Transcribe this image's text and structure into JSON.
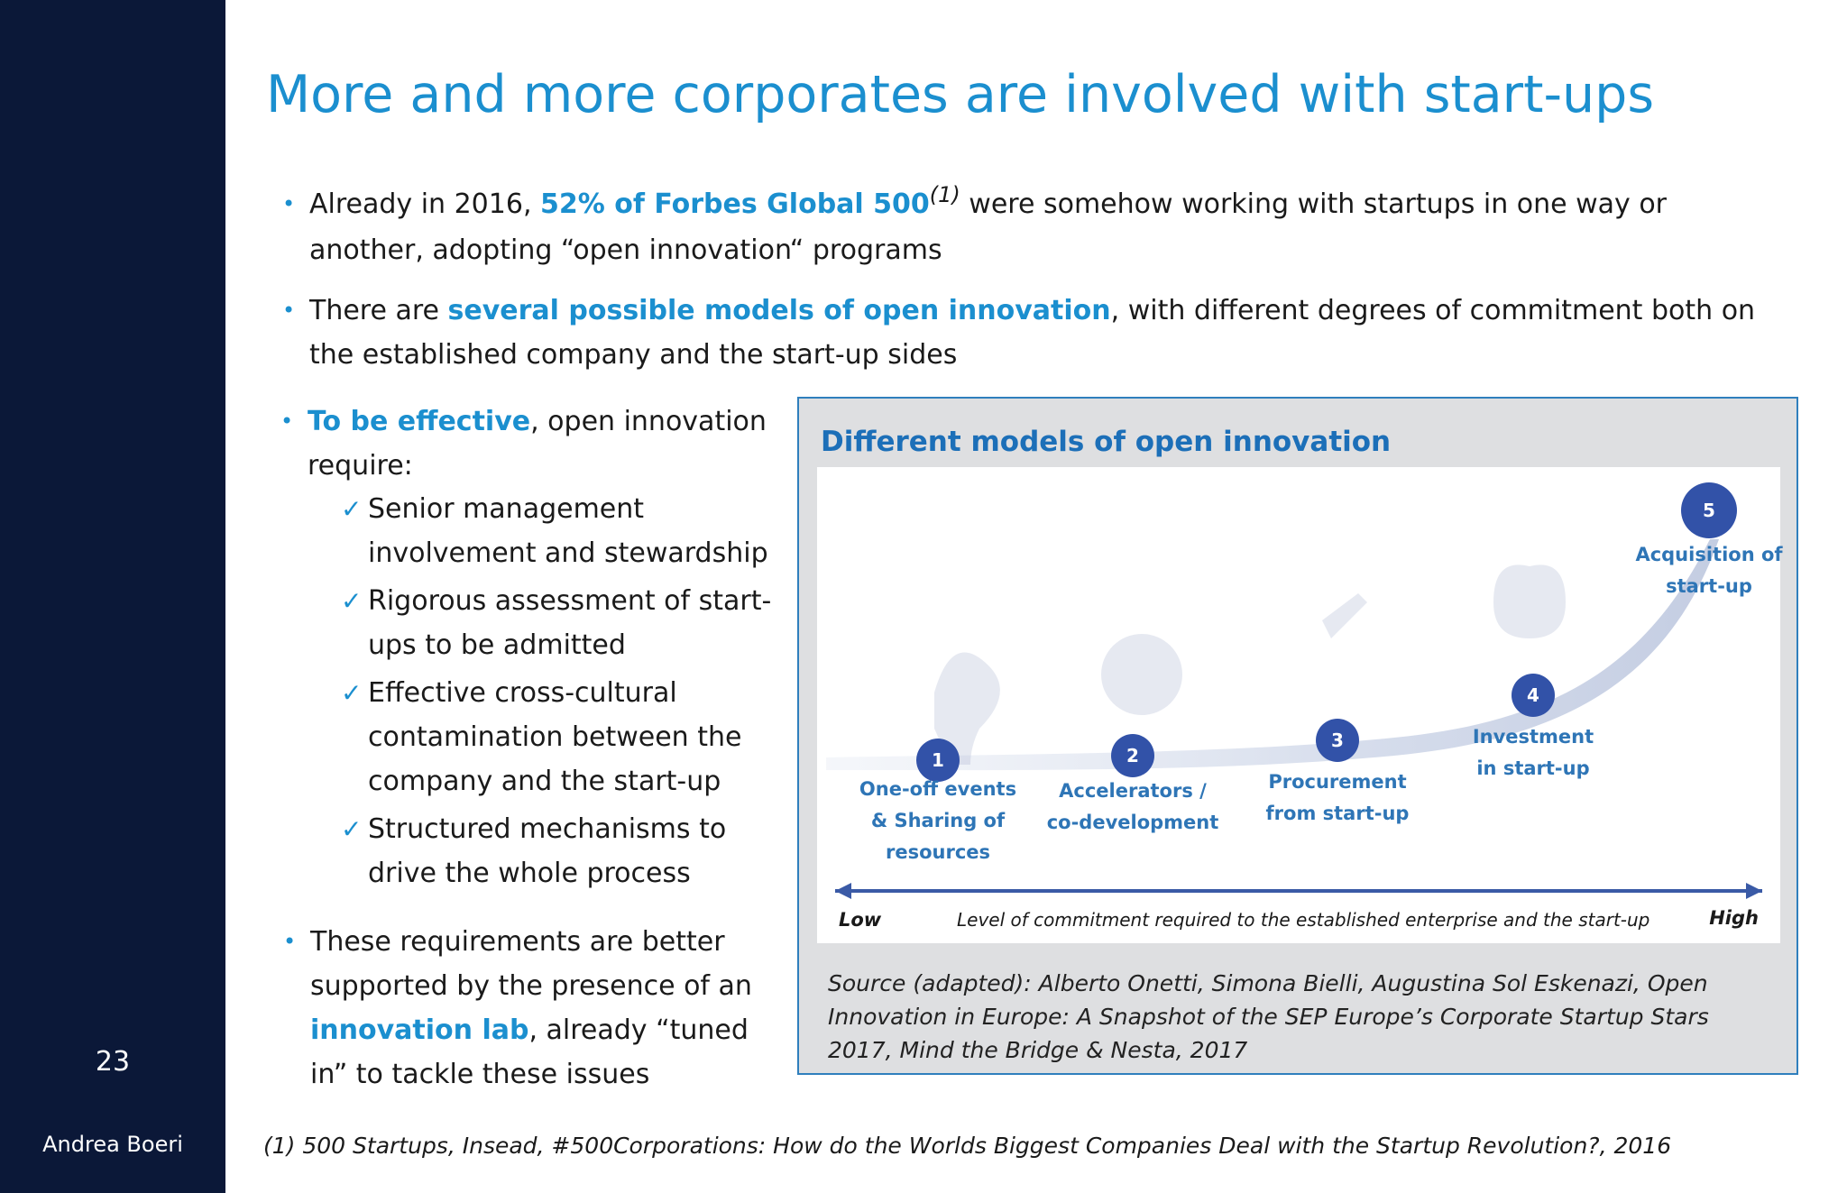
{
  "slide": {
    "title": "More and more corporates are involved with start-ups",
    "number": "23",
    "author": "Andrea Boeri"
  },
  "bullets": {
    "b1": {
      "pre": "Already in 2016, ",
      "highlight": "52% of Forbes Global 500",
      "footnote_ref": "(1)",
      "post": " were somehow working with startups in one way or another, adopting “open innovation“ programs"
    },
    "b2": {
      "pre": "There are ",
      "highlight": "several possible models of open innovation",
      "post": ", with different degrees of commitment both on the established company and the start-up sides"
    },
    "b3": {
      "highlight": "To be effective",
      "post": ", open innovation require:"
    },
    "checks": [
      "Senior management involvement and stewardship",
      "Rigorous assessment of start-ups to be admitted",
      "Effective cross-cultural contamination between the company and the start-up",
      "Structured mechanisms to drive the whole process"
    ],
    "b4": {
      "pre": "These requirements are better supported by the presence of an ",
      "highlight": "innovation lab",
      "post": ", already “tuned in” to tackle these issues"
    }
  },
  "panel": {
    "title": "Different models of open innovation",
    "stages": [
      {
        "num": "1",
        "label_lines": [
          "One-off events",
          "& Sharing of",
          "resources"
        ]
      },
      {
        "num": "2",
        "label_lines": [
          "Accelerators /",
          "co-development"
        ]
      },
      {
        "num": "3",
        "label_lines": [
          "Procurement",
          "from start-up"
        ]
      },
      {
        "num": "4",
        "label_lines": [
          "Investment",
          "in start-up"
        ]
      },
      {
        "num": "5",
        "label_lines": [
          "Acquisition of",
          "start-up"
        ]
      }
    ],
    "axis": {
      "low": "Low",
      "high": "High",
      "caption": "Level of commitment required to the established enterprise and the start-up"
    },
    "source": "Source (adapted): Alberto Onetti, Simona Bielli, Augustina Sol Eskenazi, Open Innovation in Europe: A Snapshot of the SEP Europe’s Corporate Startup Stars 2017, Mind the Bridge & Nesta, 2017"
  },
  "footnote": "(1)  500 Startups, Insead, #500Corporations: How do the Worlds Biggest Companies Deal with the Startup Revolution?, 2016",
  "colors": {
    "accent": "#1b8fcf",
    "sidebar": "#0b1838",
    "stage": "#3252a8"
  },
  "icons": {
    "bullet": "bullet-dot-icon",
    "check": "checkmark-icon"
  }
}
